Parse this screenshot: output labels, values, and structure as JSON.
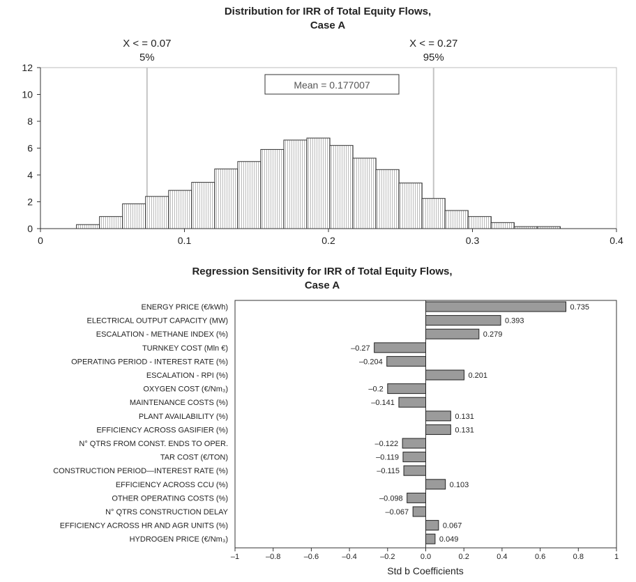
{
  "chart_data": [
    {
      "type": "bar",
      "title": [
        "Distribution for IRR of Total Equity Flows,",
        "Case A"
      ],
      "xlim": [
        0,
        0.4
      ],
      "ylim": [
        0,
        12
      ],
      "xticks": [
        "0",
        "0.1",
        "0.2",
        "0.3",
        "0.4"
      ],
      "yticks": [
        "0",
        "2",
        "4",
        "6",
        "8",
        "10",
        "12"
      ],
      "bin_width": 0.016,
      "bins_x": [
        0.025,
        0.041,
        0.057,
        0.073,
        0.089,
        0.105,
        0.121,
        0.137,
        0.153,
        0.169,
        0.185,
        0.201,
        0.217,
        0.233,
        0.249,
        0.265,
        0.281,
        0.297,
        0.313,
        0.329,
        0.345
      ],
      "values": [
        0.3,
        0.9,
        1.85,
        2.4,
        2.85,
        3.45,
        4.45,
        5.0,
        5.9,
        6.6,
        6.75,
        6.2,
        5.25,
        4.4,
        3.4,
        2.25,
        1.35,
        0.9,
        0.45,
        0.15,
        0.15
      ],
      "markers": [
        {
          "x": 0.074,
          "label": "X < = 0.07",
          "pct": "5%"
        },
        {
          "x": 0.273,
          "label": "X < = 0.27",
          "pct": "95%"
        }
      ],
      "mean_label": "Mean = 0.177007"
    },
    {
      "type": "bar",
      "orientation": "horizontal",
      "title": [
        "Regression Sensitivity for IRR of Total Equity Flows,",
        "Case A"
      ],
      "xlabel": "Std b Coefficients",
      "xlim": [
        -1,
        1
      ],
      "xticks": [
        "–1",
        "–0.8",
        "–0.6",
        "–0.4",
        "–0.2",
        "0.0",
        "0.2",
        "0.4",
        "0.6",
        "0.8",
        "1"
      ],
      "categories": [
        "ENERGY PRICE (€/kWh)",
        "ELECTRICAL OUTPUT CAPACITY (MW)",
        "ESCALATION - METHANE INDEX (%)",
        "TURNKEY COST (Mln €)",
        "OPERATING PERIOD - INTEREST RATE (%)",
        "ESCALATION - RPI  (%)",
        "OXYGEN COST (€/Nm₃)",
        "MAINTENANCE COSTS (%)",
        "PLANT AVAILABILITY (%)",
        "EFFICIENCY ACROSS GASIFIER (%)",
        "N° QTRS FROM CONST. ENDS TO OPER.",
        "TAR COST (€/TON)",
        "CONSTRUCTION PERIOD—INTEREST RATE (%)",
        "EFFICIENCY ACROSS CCU (%)",
        "OTHER OPERATING COSTS (%)",
        "N° QTRS CONSTRUCTION DELAY",
        "EFFICIENCY ACROSS HR AND AGR UNITS (%)",
        "HYDROGEN PRICE (€/Nm₃)"
      ],
      "values": [
        0.735,
        0.393,
        0.279,
        -0.27,
        -0.204,
        0.201,
        -0.2,
        -0.141,
        0.131,
        0.131,
        -0.122,
        -0.119,
        -0.115,
        0.103,
        -0.098,
        -0.067,
        0.067,
        0.049
      ],
      "value_labels": [
        "0.735",
        "0.393",
        "0.279",
        "–0.27",
        "–0.204",
        "0.201",
        "–0.2",
        "–0.141",
        "0.131",
        "0.131",
        "–0.122",
        "–0.119",
        "–0.115",
        "0.103",
        "–0.098",
        "–0.067",
        "0.067",
        "0.049"
      ]
    }
  ]
}
